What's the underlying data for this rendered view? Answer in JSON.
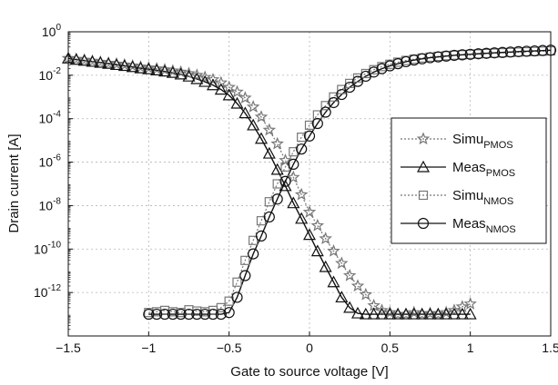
{
  "chart_data": {
    "type": "line",
    "xlabel": "Gate to source voltage [V]",
    "ylabel": "Drain current [A]",
    "xlim": [
      -1.5,
      1.5
    ],
    "ylim": [
      1e-14,
      1
    ],
    "y_scale": "log",
    "grid": true,
    "legend_position": "right",
    "x_ticks": [
      {
        "value": -1.5,
        "label": "−1.5"
      },
      {
        "value": -1.0,
        "label": "−1"
      },
      {
        "value": -0.5,
        "label": "−0.5"
      },
      {
        "value": 0.0,
        "label": "0"
      },
      {
        "value": 0.5,
        "label": "0.5"
      },
      {
        "value": 1.0,
        "label": "1"
      },
      {
        "value": 1.5,
        "label": "1.5"
      }
    ],
    "y_ticks": [
      {
        "exp": 0,
        "base": "10",
        "sup": "0"
      },
      {
        "exp": -2,
        "base": "10",
        "sup": "-2"
      },
      {
        "exp": -4,
        "base": "10",
        "sup": "-4"
      },
      {
        "exp": -6,
        "base": "10",
        "sup": "-6"
      },
      {
        "exp": -8,
        "base": "10",
        "sup": "-8"
      },
      {
        "exp": -10,
        "base": "10",
        "sup": "-10"
      },
      {
        "exp": -12,
        "base": "10",
        "sup": "-12"
      }
    ],
    "series": [
      {
        "name": "Simu",
        "sub": "PMOS",
        "marker": "star",
        "line": "dotted",
        "color": "#777777",
        "x": [
          -1.5,
          -1.45,
          -1.4,
          -1.35,
          -1.3,
          -1.25,
          -1.2,
          -1.15,
          -1.1,
          -1.05,
          -1.0,
          -0.95,
          -0.9,
          -0.85,
          -0.8,
          -0.75,
          -0.7,
          -0.65,
          -0.6,
          -0.55,
          -0.5,
          -0.45,
          -0.4,
          -0.35,
          -0.3,
          -0.25,
          -0.2,
          -0.15,
          -0.1,
          -0.05,
          0.0,
          0.05,
          0.1,
          0.15,
          0.2,
          0.25,
          0.3,
          0.35,
          0.4,
          0.45,
          0.5,
          0.55,
          0.6,
          0.65,
          0.7,
          0.75,
          0.8,
          0.85,
          0.9,
          0.95,
          1.0
        ],
        "y": [
          0.06,
          0.055,
          0.05,
          0.045,
          0.04,
          0.036,
          0.033,
          0.03,
          0.027,
          0.024,
          0.022,
          0.02,
          0.018,
          0.016,
          0.014,
          0.012,
          0.01,
          0.008,
          0.0063,
          0.0045,
          0.0028,
          0.0017,
          0.0009,
          0.00035,
          0.00012,
          3e-05,
          7e-06,
          1.2e-06,
          2e-07,
          3.2e-08,
          5e-09,
          1.2e-09,
          3e-10,
          8e-11,
          2.2e-11,
          6e-12,
          2e-12,
          8e-13,
          2.5e-13,
          1.5e-13,
          1.2e-13,
          1e-13,
          1e-13,
          1.2e-13,
          1e-13,
          1.1e-13,
          1e-13,
          1.2e-13,
          1.5e-13,
          2.2e-13,
          3e-13
        ]
      },
      {
        "name": "Meas",
        "sub": "PMOS",
        "marker": "triangle",
        "line": "solid",
        "color": "#111111",
        "x": [
          -1.5,
          -1.45,
          -1.4,
          -1.35,
          -1.3,
          -1.25,
          -1.2,
          -1.15,
          -1.1,
          -1.05,
          -1.0,
          -0.95,
          -0.9,
          -0.85,
          -0.8,
          -0.75,
          -0.7,
          -0.65,
          -0.6,
          -0.55,
          -0.5,
          -0.45,
          -0.4,
          -0.35,
          -0.3,
          -0.25,
          -0.2,
          -0.15,
          -0.1,
          -0.05,
          0.0,
          0.05,
          0.1,
          0.15,
          0.2,
          0.25,
          0.3,
          0.35,
          0.4,
          0.45,
          0.5,
          0.55,
          0.6,
          0.65,
          0.7,
          0.75,
          0.8,
          0.85,
          0.9,
          0.95,
          1.0
        ],
        "y": [
          0.06,
          0.052,
          0.047,
          0.042,
          0.038,
          0.034,
          0.03,
          0.027,
          0.024,
          0.021,
          0.019,
          0.017,
          0.015,
          0.013,
          0.011,
          0.0088,
          0.0067,
          0.005,
          0.0035,
          0.0022,
          0.0012,
          0.0005,
          0.00018,
          5e-05,
          1.2e-05,
          2.5e-06,
          4.5e-07,
          8e-08,
          1.3e-08,
          2.5e-09,
          4.5e-10,
          8e-11,
          1.5e-11,
          3e-12,
          6e-13,
          2e-13,
          1.1e-13,
          1e-13,
          1e-13,
          1e-13,
          1e-13,
          1e-13,
          1e-13,
          1e-13,
          1e-13,
          1e-13,
          1e-13,
          1e-13,
          1e-13,
          1e-13,
          1e-13
        ]
      },
      {
        "name": "Simu",
        "sub": "NMOS",
        "marker": "square",
        "line": "dotted",
        "color": "#777777",
        "x": [
          -1.0,
          -0.95,
          -0.9,
          -0.85,
          -0.8,
          -0.75,
          -0.7,
          -0.65,
          -0.6,
          -0.55,
          -0.5,
          -0.45,
          -0.4,
          -0.35,
          -0.3,
          -0.25,
          -0.2,
          -0.15,
          -0.1,
          -0.05,
          0.0,
          0.05,
          0.1,
          0.15,
          0.2,
          0.25,
          0.3,
          0.35,
          0.4,
          0.45,
          0.5,
          0.55,
          0.6,
          0.65,
          0.7,
          0.75,
          0.8,
          0.85,
          0.9,
          0.95,
          1.0,
          1.05,
          1.1,
          1.15,
          1.2,
          1.25,
          1.3,
          1.35,
          1.4,
          1.45,
          1.5
        ],
        "y": [
          1.2e-13,
          1.3e-13,
          1.5e-13,
          1.3e-13,
          1.2e-13,
          1.6e-13,
          1.4e-13,
          1.3e-13,
          1.5e-13,
          2e-13,
          4e-13,
          3e-12,
          3e-11,
          2.5e-10,
          2e-09,
          1.5e-08,
          1e-07,
          6e-07,
          3e-06,
          1.4e-05,
          5e-05,
          0.00015,
          0.0004,
          0.001,
          0.0022,
          0.0042,
          0.0075,
          0.012,
          0.018,
          0.025,
          0.032,
          0.04,
          0.048,
          0.055,
          0.062,
          0.068,
          0.074,
          0.079,
          0.084,
          0.088,
          0.092,
          0.096,
          0.1,
          0.104,
          0.108,
          0.112,
          0.116,
          0.12,
          0.124,
          0.128,
          0.132
        ]
      },
      {
        "name": "Meas",
        "sub": "NMOS",
        "marker": "circle",
        "line": "solid",
        "color": "#111111",
        "x": [
          -1.0,
          -0.95,
          -0.9,
          -0.85,
          -0.8,
          -0.75,
          -0.7,
          -0.65,
          -0.6,
          -0.55,
          -0.5,
          -0.45,
          -0.4,
          -0.35,
          -0.3,
          -0.25,
          -0.2,
          -0.15,
          -0.1,
          -0.05,
          0.0,
          0.05,
          0.1,
          0.15,
          0.2,
          0.25,
          0.3,
          0.35,
          0.4,
          0.45,
          0.5,
          0.55,
          0.6,
          0.65,
          0.7,
          0.75,
          0.8,
          0.85,
          0.9,
          0.95,
          1.0,
          1.05,
          1.1,
          1.15,
          1.2,
          1.25,
          1.3,
          1.35,
          1.4,
          1.45,
          1.5
        ],
        "y": [
          1e-13,
          1e-13,
          1e-13,
          1e-13,
          1e-13,
          1e-13,
          1e-13,
          1e-13,
          1e-13,
          1e-13,
          1.2e-13,
          6e-13,
          6e-12,
          6e-11,
          4e-10,
          3e-09,
          2e-08,
          1.3e-07,
          8e-07,
          4e-06,
          1.6e-05,
          6e-05,
          0.0002,
          0.00055,
          0.0013,
          0.0028,
          0.0052,
          0.009,
          0.014,
          0.02,
          0.027,
          0.034,
          0.042,
          0.05,
          0.057,
          0.064,
          0.07,
          0.076,
          0.082,
          0.087,
          0.092,
          0.097,
          0.102,
          0.107,
          0.112,
          0.117,
          0.122,
          0.127,
          0.132,
          0.137,
          0.142
        ]
      }
    ]
  }
}
